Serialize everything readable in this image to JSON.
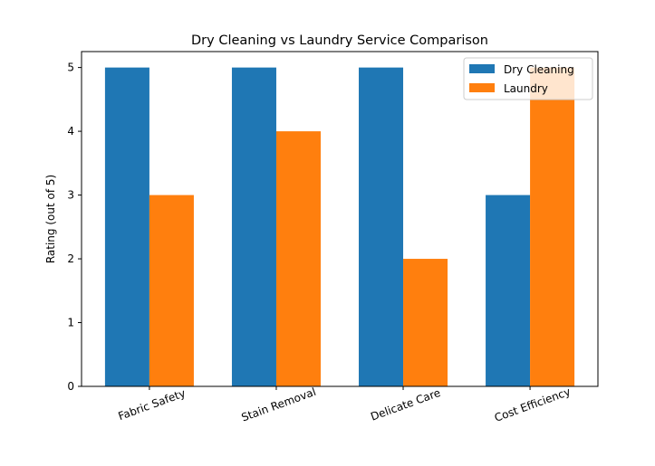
{
  "chart_data": {
    "type": "bar",
    "title": "Dry Cleaning vs Laundry Service Comparison",
    "xlabel": "",
    "ylabel": "Rating (out of 5)",
    "categories": [
      "Fabric Safety",
      "Stain Removal",
      "Delicate Care",
      "Cost Efficiency"
    ],
    "series": [
      {
        "name": "Dry Cleaning",
        "values": [
          5,
          5,
          5,
          3
        ],
        "color": "#1f77b4"
      },
      {
        "name": "Laundry",
        "values": [
          3,
          4,
          2,
          5
        ],
        "color": "#ff7f0e"
      }
    ],
    "ylim": [
      0,
      5.25
    ],
    "yticks": [
      0,
      1,
      2,
      3,
      4,
      5
    ],
    "grid": false,
    "legend": "top-right"
  }
}
